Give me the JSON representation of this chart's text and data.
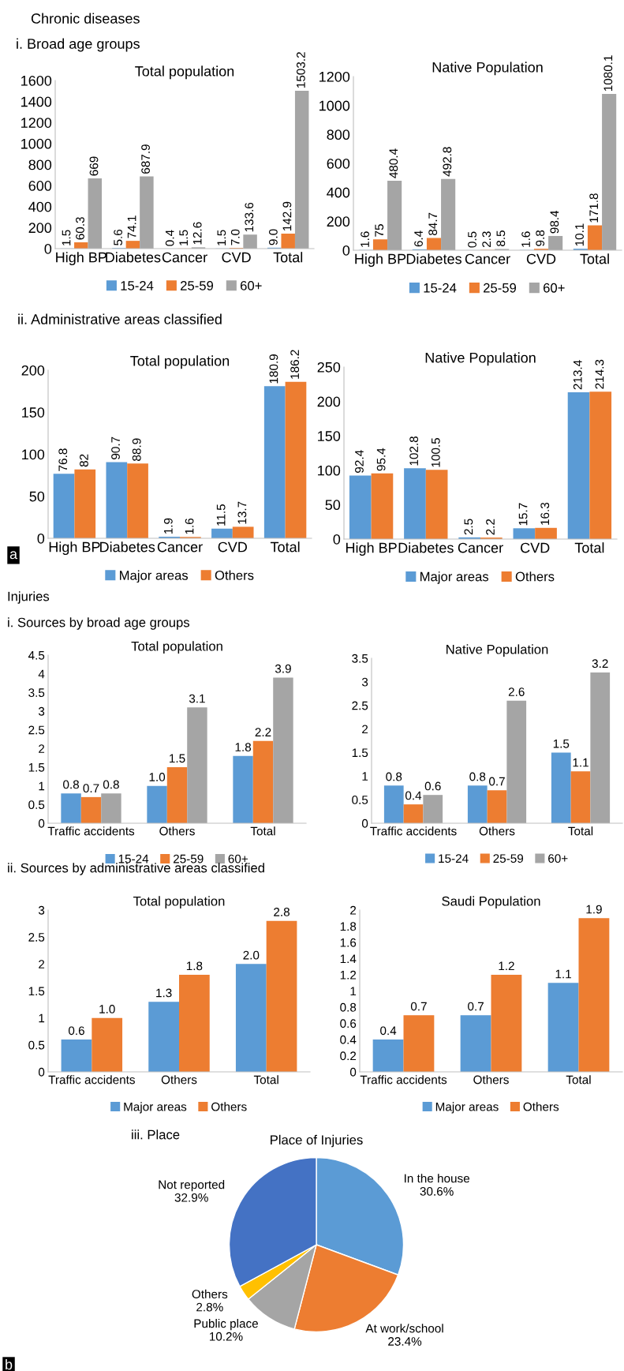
{
  "chart_data": [
    {
      "type": "bar",
      "title": "Total population",
      "annotations": [
        "Chronic diseases",
        "i. Broad age groups"
      ],
      "categories": [
        "High BP",
        "Diabetes",
        "Cancer",
        "CVD",
        "Total"
      ],
      "ylim": [
        0,
        1600
      ],
      "yticks": [
        0,
        200,
        400,
        600,
        800,
        1000,
        1200,
        1400,
        1600
      ],
      "legend": "bottom",
      "series": [
        {
          "name": "15-24",
          "color": "#5b9bd5",
          "values": [
            1.5,
            5.6,
            0.4,
            1.5,
            9.0
          ],
          "value_labels": [
            "1.5",
            "5.6",
            "0.4",
            "1.5",
            "9.0"
          ]
        },
        {
          "name": "25-59",
          "color": "#ed7d31",
          "values": [
            60.3,
            74.1,
            1.5,
            7.0,
            142.9
          ],
          "value_labels": [
            "60.3",
            "74.1",
            "1.5",
            "7.0",
            "142.9"
          ]
        },
        {
          "name": "60+",
          "color": "#a5a5a5",
          "values": [
            669,
            687.9,
            12.6,
            133.6,
            1503.2
          ],
          "value_labels": [
            "669",
            "687.9",
            "12.6",
            "133.6",
            "1503.2"
          ]
        }
      ]
    },
    {
      "type": "bar",
      "title": "Native Population",
      "categories": [
        "High BP",
        "Diabetes",
        "Cancer",
        "CVD",
        "Total"
      ],
      "ylim": [
        0,
        1200
      ],
      "yticks": [
        0,
        200,
        400,
        600,
        800,
        1000,
        1200
      ],
      "legend": "bottom",
      "series": [
        {
          "name": "15-24",
          "color": "#5b9bd5",
          "values": [
            1.6,
            6.4,
            0.5,
            1.6,
            10.1
          ],
          "value_labels": [
            "1.6",
            "6.4",
            "0.5",
            "1.6",
            "10.1"
          ]
        },
        {
          "name": "25-59",
          "color": "#ed7d31",
          "values": [
            75,
            84.7,
            2.3,
            9.8,
            171.8
          ],
          "value_labels": [
            "75",
            "84.7",
            "2.3",
            "9.8",
            "171.8"
          ]
        },
        {
          "name": "60+",
          "color": "#a5a5a5",
          "values": [
            480.4,
            492.8,
            8.5,
            98.4,
            1080.1
          ],
          "value_labels": [
            "480.4",
            "492.8",
            "8.5",
            "98.4",
            "1080.1"
          ]
        }
      ]
    },
    {
      "type": "bar",
      "title": "Total population",
      "annotations": [
        "ii. Administrative areas classified",
        "a"
      ],
      "categories": [
        "High BP",
        "Diabetes",
        "Cancer",
        "CVD",
        "Total"
      ],
      "ylim": [
        0,
        200
      ],
      "yticks": [
        0,
        50,
        100,
        150,
        200
      ],
      "legend": "bottom",
      "series": [
        {
          "name": "Major areas",
          "color": "#5b9bd5",
          "values": [
            76.8,
            90.7,
            1.9,
            11.5,
            180.9
          ],
          "value_labels": [
            "76.8",
            "90.7",
            "1.9",
            "11.5",
            "180.9"
          ]
        },
        {
          "name": "Others",
          "color": "#ed7d31",
          "values": [
            82,
            88.9,
            1.6,
            13.7,
            186.2
          ],
          "value_labels": [
            "82",
            "88.9",
            "1.6",
            "13.7",
            "186.2"
          ]
        }
      ]
    },
    {
      "type": "bar",
      "title": "Native Population",
      "categories": [
        "High BP",
        "Diabetes",
        "Cancer",
        "CVD",
        "Total"
      ],
      "ylim": [
        0,
        250
      ],
      "yticks": [
        0,
        50,
        100,
        150,
        200,
        250
      ],
      "legend": "bottom",
      "series": [
        {
          "name": "Major areas",
          "color": "#5b9bd5",
          "values": [
            92.4,
            102.8,
            2.5,
            15.7,
            213.4
          ],
          "value_labels": [
            "92.4",
            "102.8",
            "2.5",
            "15.7",
            "213.4"
          ]
        },
        {
          "name": "Others",
          "color": "#ed7d31",
          "values": [
            95.4,
            100.5,
            2.2,
            16.3,
            214.3
          ],
          "value_labels": [
            "95.4",
            "100.5",
            "2.2",
            "16.3",
            "214.3"
          ]
        }
      ]
    },
    {
      "type": "bar",
      "title": "Total population",
      "annotations": [
        "Injuries",
        "i. Sources by broad age groups"
      ],
      "categories": [
        "Traffic accidents",
        "Others",
        "Total"
      ],
      "ylim": [
        0,
        4.5
      ],
      "yticks": [
        0,
        0.5,
        1,
        1.5,
        2,
        2.5,
        3,
        3.5,
        4,
        4.5
      ],
      "legend": "bottom",
      "series": [
        {
          "name": "15-24",
          "color": "#5b9bd5",
          "values": [
            0.8,
            1.0,
            1.8
          ],
          "value_labels": [
            "0.8",
            "1.0",
            "1.8"
          ]
        },
        {
          "name": "25-59",
          "color": "#ed7d31",
          "values": [
            0.7,
            1.5,
            2.2
          ],
          "value_labels": [
            "0.7",
            "1.5",
            "2.2"
          ]
        },
        {
          "name": "60+",
          "color": "#a5a5a5",
          "values": [
            0.8,
            3.1,
            3.9
          ],
          "value_labels": [
            "0.8",
            "3.1",
            "3.9"
          ]
        }
      ]
    },
    {
      "type": "bar",
      "title": "Native Population",
      "categories": [
        "Traffic accidents",
        "Others",
        "Total"
      ],
      "ylim": [
        0,
        3.5
      ],
      "yticks": [
        0,
        0.5,
        1,
        1.5,
        2,
        2.5,
        3,
        3.5
      ],
      "legend": "bottom",
      "series": [
        {
          "name": "15-24",
          "color": "#5b9bd5",
          "values": [
            0.8,
            0.8,
            1.5
          ],
          "value_labels": [
            "0.8",
            "0.8",
            "1.5"
          ]
        },
        {
          "name": "25-59",
          "color": "#ed7d31",
          "values": [
            0.4,
            0.7,
            1.1
          ],
          "value_labels": [
            "0.4",
            "0.7",
            "1.1"
          ]
        },
        {
          "name": "60+",
          "color": "#a5a5a5",
          "values": [
            0.6,
            2.6,
            3.2
          ],
          "value_labels": [
            "0.6",
            "2.6",
            "3.2"
          ]
        }
      ]
    },
    {
      "type": "bar",
      "title": "Total population",
      "annotations": [
        "ii. Sources by administrative areas classified"
      ],
      "categories": [
        "Traffic accidents",
        "Others",
        "Total"
      ],
      "ylim": [
        0,
        3
      ],
      "yticks": [
        0,
        0.5,
        1,
        1.5,
        2,
        2.5,
        3
      ],
      "legend": "bottom",
      "series": [
        {
          "name": "Major areas",
          "color": "#5b9bd5",
          "values": [
            0.6,
            1.3,
            2.0
          ],
          "value_labels": [
            "0.6",
            "1.3",
            "2.0"
          ]
        },
        {
          "name": "Others",
          "color": "#ed7d31",
          "values": [
            1.0,
            1.8,
            2.8
          ],
          "value_labels": [
            "1.0",
            "1.8",
            "2.8"
          ]
        }
      ]
    },
    {
      "type": "bar",
      "title": "Saudi Population",
      "categories": [
        "Traffic accidents",
        "Others",
        "Total"
      ],
      "ylim": [
        0,
        2
      ],
      "yticks": [
        0,
        0.2,
        0.4,
        0.6,
        0.8,
        1,
        1.2,
        1.4,
        1.6,
        1.8,
        2
      ],
      "legend": "bottom",
      "series": [
        {
          "name": "Major areas",
          "color": "#5b9bd5",
          "values": [
            0.4,
            0.7,
            1.1
          ],
          "value_labels": [
            "0.4",
            "0.7",
            "1.1"
          ]
        },
        {
          "name": "Others",
          "color": "#ed7d31",
          "values": [
            0.7,
            1.2,
            1.9
          ],
          "value_labels": [
            "0.7",
            "1.2",
            "1.9"
          ]
        }
      ]
    },
    {
      "type": "pie",
      "title": "Place of Injuries",
      "annotations": [
        "iii. Place",
        "b"
      ],
      "categories": [
        "In the house",
        "At work/school",
        "Public place",
        "Others",
        "Not reported"
      ],
      "values": [
        30.6,
        23.4,
        10.2,
        2.8,
        32.9
      ],
      "value_labels": [
        "30.6%",
        "23.4%",
        "10.2%",
        "2.8%",
        "32.9%"
      ],
      "colors": [
        "#5b9bd5",
        "#ed7d31",
        "#a5a5a5",
        "#ffc000",
        "#4472c4"
      ]
    }
  ]
}
